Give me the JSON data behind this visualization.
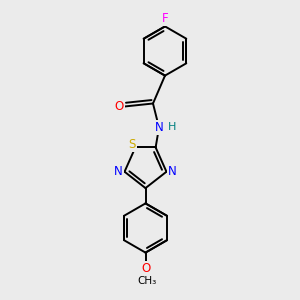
{
  "bg_color": "#ebebeb",
  "atom_colors": {
    "C": "#000000",
    "N": "#0000ff",
    "O": "#ff0000",
    "S": "#ccaa00",
    "F": "#ff00ff",
    "H": "#008080"
  },
  "bond_color": "#000000",
  "bond_width": 1.4,
  "font_size_atom": 8.5
}
